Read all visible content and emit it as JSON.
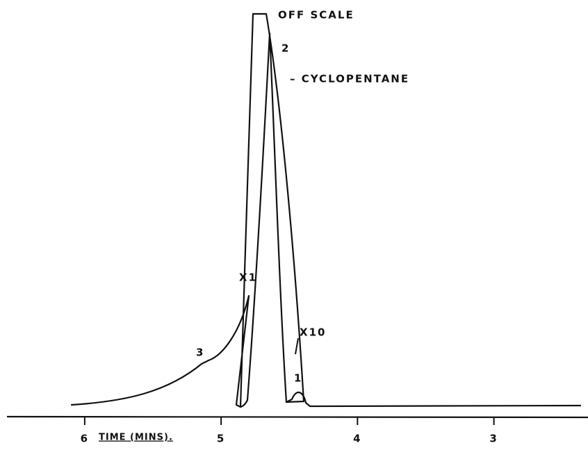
{
  "chart_data": {
    "type": "line",
    "xlabel": "TIME (MINS).",
    "xlim": [
      6.57,
      2.31
    ],
    "xticks": [
      6,
      5,
      4,
      3
    ],
    "annotations": [
      "OFF SCALE",
      "2",
      "– CYCLOPENTANE",
      "X1",
      "X10",
      "3",
      "1"
    ],
    "color": "#111111"
  }
}
